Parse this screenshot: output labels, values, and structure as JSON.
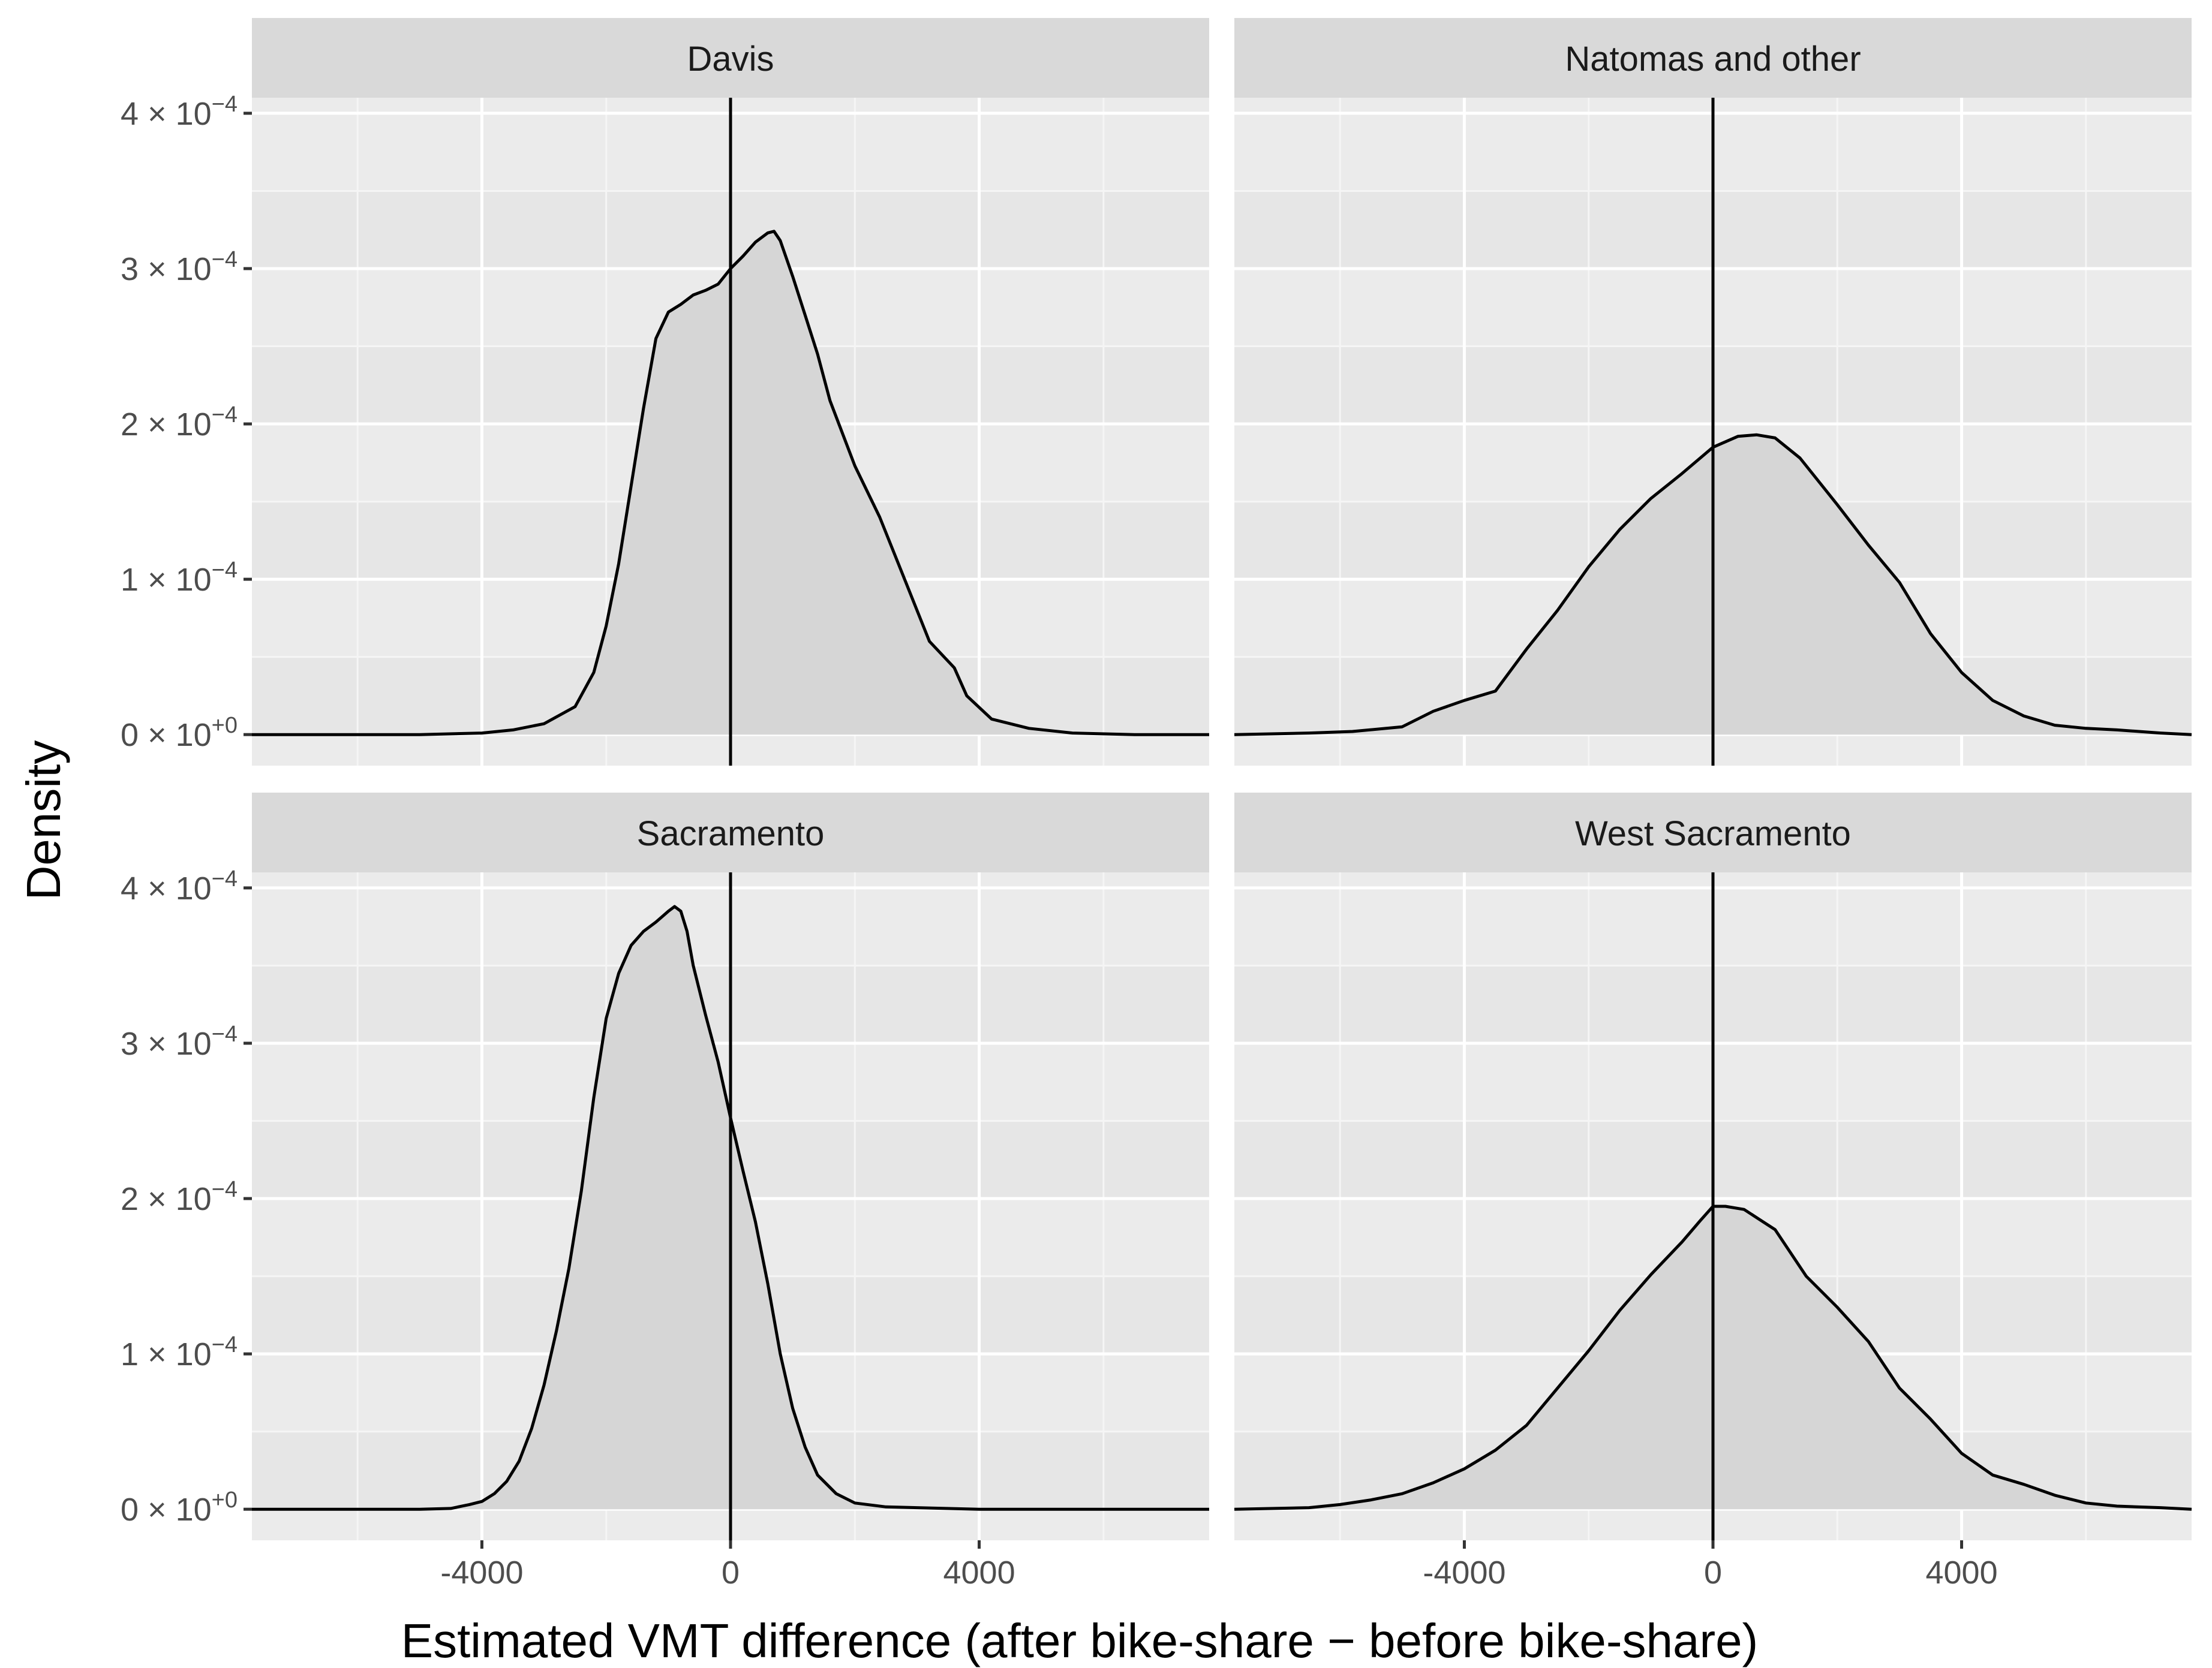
{
  "chart_data": {
    "type": "area",
    "xlabel": "Estimated VMT difference (after bike-share − before bike-share)",
    "ylabel": "Density",
    "xlim": [
      -7700,
      7700
    ],
    "ylim": [
      -2e-05,
      0.00041
    ],
    "x_ticks": [
      -4000,
      0,
      4000
    ],
    "x_tick_labels": [
      "-4000",
      "0",
      "4000"
    ],
    "y_ticks": [
      0,
      0.0001,
      0.0002,
      0.0003,
      0.0004
    ],
    "y_tick_mantissa": [
      "0",
      "1",
      "2",
      "3",
      "4"
    ],
    "y_tick_times": "×",
    "y_tick_base": "10",
    "y_tick_exponent": [
      "+0",
      "−4",
      "−4",
      "−4",
      "−4"
    ],
    "reference_line_x": 0,
    "colors": {
      "panel_bg": "#ebebeb",
      "strip_bg": "#d9d9d9",
      "grid_major": "#ffffff",
      "grid_minor": "#f5f5f5",
      "fill": "#d6d6d6",
      "line": "#000000",
      "band": "#cfcfcf"
    },
    "panels": [
      {
        "title": "Davis",
        "x": [
          -7700,
          -5000,
          -4000,
          -3500,
          -3000,
          -2500,
          -2200,
          -2000,
          -1800,
          -1600,
          -1400,
          -1200,
          -1000,
          -800,
          -600,
          -400,
          -200,
          0,
          200,
          400,
          600,
          700,
          800,
          1000,
          1200,
          1400,
          1600,
          2000,
          2400,
          2800,
          3200,
          3600,
          3800,
          4200,
          4800,
          5500,
          6500,
          7700
        ],
        "values": [
          0,
          0,
          1e-06,
          3e-06,
          7e-06,
          1.8e-05,
          4e-05,
          7e-05,
          0.00011,
          0.00016,
          0.00021,
          0.000255,
          0.000272,
          0.000277,
          0.000283,
          0.000286,
          0.00029,
          0.0003,
          0.000308,
          0.000317,
          0.000323,
          0.000324,
          0.000318,
          0.000295,
          0.00027,
          0.000245,
          0.000215,
          0.000173,
          0.00014,
          0.0001,
          6e-05,
          4.3e-05,
          2.5e-05,
          1e-05,
          4e-06,
          1e-06,
          0,
          0
        ]
      },
      {
        "title": "Natomas and other",
        "x": [
          -7700,
          -6500,
          -5800,
          -5000,
          -4500,
          -4000,
          -3500,
          -3000,
          -2500,
          -2000,
          -1500,
          -1000,
          -500,
          0,
          400,
          700,
          1000,
          1400,
          2000,
          2500,
          3000,
          3500,
          4000,
          4500,
          5000,
          5500,
          6000,
          6500,
          7200,
          7700
        ],
        "values": [
          0,
          1e-06,
          2e-06,
          5e-06,
          1.5e-05,
          2.2e-05,
          2.8e-05,
          5.5e-05,
          8e-05,
          0.000108,
          0.000132,
          0.000152,
          0.000168,
          0.000185,
          0.000192,
          0.000193,
          0.000191,
          0.000178,
          0.000148,
          0.000122,
          9.8e-05,
          6.5e-05,
          4e-05,
          2.2e-05,
          1.2e-05,
          6e-06,
          4e-06,
          3e-06,
          1e-06,
          0
        ]
      },
      {
        "title": "Sacramento",
        "x": [
          -7700,
          -5000,
          -4500,
          -4200,
          -4000,
          -3800,
          -3600,
          -3400,
          -3200,
          -3000,
          -2800,
          -2600,
          -2400,
          -2200,
          -2000,
          -1800,
          -1600,
          -1400,
          -1200,
          -1000,
          -900,
          -800,
          -700,
          -600,
          -400,
          -200,
          0,
          200,
          400,
          600,
          800,
          1000,
          1200,
          1400,
          1700,
          2000,
          2500,
          3000,
          4000,
          7700
        ],
        "values": [
          0,
          0,
          5e-07,
          3e-06,
          5e-06,
          1e-05,
          1.8e-05,
          3.1e-05,
          5.2e-05,
          8e-05,
          0.000115,
          0.000155,
          0.000205,
          0.000265,
          0.000316,
          0.000345,
          0.000363,
          0.000372,
          0.000378,
          0.000385,
          0.000388,
          0.000385,
          0.000372,
          0.00035,
          0.000318,
          0.000288,
          0.000252,
          0.000218,
          0.000185,
          0.000145,
          0.0001,
          6.5e-05,
          4e-05,
          2.2e-05,
          1e-05,
          4e-06,
          1.5e-06,
          1e-06,
          0,
          0
        ]
      },
      {
        "title": "West Sacramento",
        "x": [
          -7700,
          -6500,
          -6000,
          -5500,
          -5000,
          -4500,
          -4000,
          -3500,
          -3000,
          -2500,
          -2000,
          -1500,
          -1000,
          -500,
          -200,
          0,
          200,
          500,
          1000,
          1500,
          2000,
          2500,
          3000,
          3500,
          4000,
          4500,
          5000,
          5500,
          6000,
          6500,
          7200,
          7700
        ],
        "values": [
          0,
          1e-06,
          3e-06,
          6e-06,
          1e-05,
          1.7e-05,
          2.6e-05,
          3.8e-05,
          5.4e-05,
          7.8e-05,
          0.000102,
          0.000128,
          0.000151,
          0.000172,
          0.000186,
          0.000195,
          0.000195,
          0.000193,
          0.00018,
          0.00015,
          0.00013,
          0.000108,
          7.8e-05,
          5.8e-05,
          3.6e-05,
          2.2e-05,
          1.6e-05,
          9e-06,
          4e-06,
          2e-06,
          1e-06,
          0
        ]
      }
    ]
  }
}
